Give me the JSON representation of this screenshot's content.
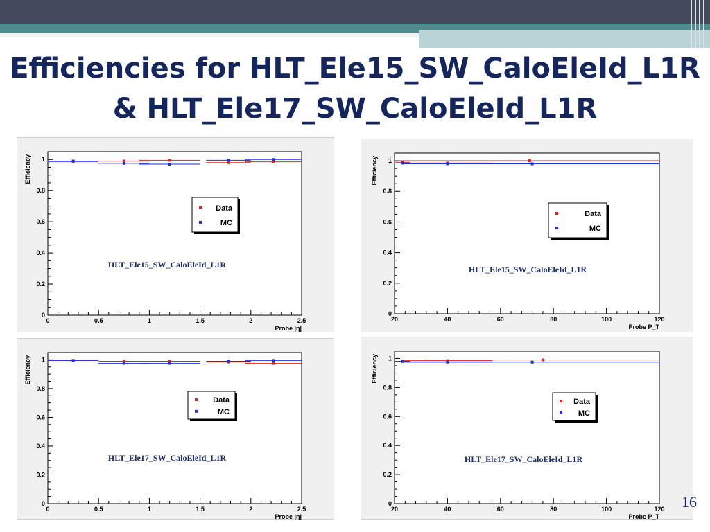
{
  "slide": {
    "title_line1": "Efficiencies for HLT_Ele15_SW_CaloEleId_L1R",
    "title_line2": "& HLT_Ele17_SW_CaloEleId_L1R",
    "page_number": "16"
  },
  "colors": {
    "title": "#15265e",
    "data_series": "#e8201a",
    "mc_series": "#1a2fe0",
    "panel_bg": "#f0f0f0",
    "band_teal": "#4f8a8e",
    "band_dark": "#454a5e"
  },
  "chart_data": [
    {
      "type": "scatter",
      "annotation": "HLT_Ele15_SW_CaloEleId_L1R",
      "xlabel": "Probe |η|",
      "ylabel": "Efficiency",
      "xlim": [
        0,
        2.5
      ],
      "ylim": [
        0,
        1.05
      ],
      "xticks": [
        "0",
        "0.5",
        "1",
        "1.5",
        "2",
        "2.5"
      ],
      "yticks": [
        "0",
        "0.2",
        "0.4",
        "0.6",
        "0.8",
        "1"
      ],
      "legend": "upper-middle",
      "series": [
        {
          "name": "Data",
          "color": "#e8201a",
          "x": [
            0.25,
            0.75,
            1.2,
            1.78,
            2.22
          ],
          "xerr": [
            0.25,
            0.25,
            0.3,
            0.22,
            0.28
          ],
          "y": [
            0.985,
            0.99,
            0.995,
            0.98,
            0.985
          ]
        },
        {
          "name": "MC",
          "color": "#1a2fe0",
          "x": [
            0.25,
            0.75,
            1.2,
            1.78,
            2.22
          ],
          "xerr": [
            0.25,
            0.25,
            0.3,
            0.22,
            0.28
          ],
          "y": [
            0.99,
            0.975,
            0.97,
            0.995,
            1.0
          ]
        }
      ]
    },
    {
      "type": "scatter",
      "annotation": "HLT_Ele15_SW_CaloEleId_L1R",
      "xlabel": "Probe P_T",
      "ylabel": "Efficiency",
      "xlim": [
        20,
        120
      ],
      "ylim": [
        0,
        1.05
      ],
      "xticks": [
        "20",
        "40",
        "60",
        "80",
        "100",
        "120"
      ],
      "yticks": [
        "0",
        "0.2",
        "0.4",
        "0.6",
        "0.8",
        "1"
      ],
      "legend": "right",
      "series": [
        {
          "name": "Data",
          "color": "#e8201a",
          "x": [
            23,
            40,
            71
          ],
          "xerr": [
            3,
            17,
            49
          ],
          "y": [
            0.99,
            0.985,
            1.0
          ]
        },
        {
          "name": "MC",
          "color": "#1a2fe0",
          "x": [
            23,
            40,
            72
          ],
          "xerr": [
            3,
            17,
            48
          ],
          "y": [
            0.985,
            0.98,
            0.98
          ]
        }
      ]
    },
    {
      "type": "scatter",
      "annotation": "HLT_Ele17_SW_CaloEleId_L1R",
      "xlabel": "Probe |η|",
      "ylabel": "Efficiency",
      "xlim": [
        0,
        2.5
      ],
      "ylim": [
        0,
        1.05
      ],
      "xticks": [
        "0",
        "0.5",
        "1",
        "1.5",
        "2",
        "2.5"
      ],
      "yticks": [
        "0",
        "0.2",
        "0.4",
        "0.6",
        "0.8",
        "1"
      ],
      "legend": "upper-middle",
      "series": [
        {
          "name": "Data",
          "color": "#e8201a",
          "x": [
            0.25,
            0.75,
            1.2,
            1.78,
            2.22
          ],
          "xerr": [
            0.25,
            0.25,
            0.3,
            0.22,
            0.28
          ],
          "y": [
            0.995,
            0.99,
            0.99,
            0.985,
            0.975
          ]
        },
        {
          "name": "MC",
          "color": "#1a2fe0",
          "x": [
            0.25,
            0.75,
            1.2,
            1.78,
            2.22
          ],
          "xerr": [
            0.25,
            0.25,
            0.3,
            0.22,
            0.28
          ],
          "y": [
            0.995,
            0.975,
            0.975,
            0.99,
            0.995
          ]
        }
      ]
    },
    {
      "type": "scatter",
      "annotation": "HLT_Ele17_SW_CaloEleId_L1R",
      "xlabel": "Probe P_T",
      "ylabel": "Efficiency",
      "xlim": [
        20,
        120
      ],
      "ylim": [
        0,
        1.05
      ],
      "xticks": [
        "20",
        "40",
        "60",
        "80",
        "100",
        "120"
      ],
      "yticks": [
        "0",
        "0.2",
        "0.4",
        "0.6",
        "0.8",
        "1"
      ],
      "legend": "right",
      "series": [
        {
          "name": "Data",
          "color": "#e8201a",
          "x": [
            23,
            40,
            76
          ],
          "xerr": [
            3,
            17,
            44
          ],
          "y": [
            0.98,
            0.985,
            0.99
          ]
        },
        {
          "name": "MC",
          "color": "#1a2fe0",
          "x": [
            23,
            40,
            72
          ],
          "xerr": [
            3,
            17,
            48
          ],
          "y": [
            0.98,
            0.975,
            0.975
          ]
        }
      ]
    }
  ]
}
